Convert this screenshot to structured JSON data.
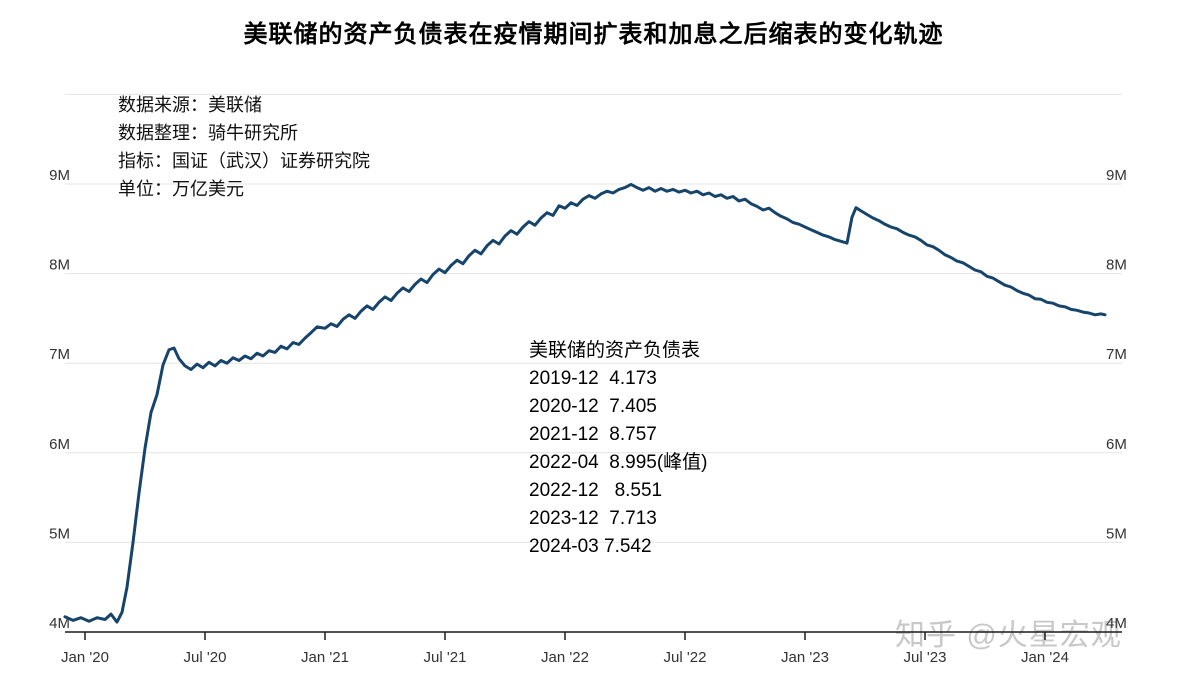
{
  "title": "美联储的资产负债表在疫情期间扩表和加息之后缩表的变化轨迹",
  "meta_lines": [
    "数据来源：美联储",
    "数据整理：骑牛研究所",
    "指标：国证（武汉）证券研究院",
    "单位：万亿美元"
  ],
  "callout": {
    "title": "美联储的资产负债表",
    "rows": [
      "2019-12  4.173",
      "2020-12  7.405",
      "2021-12  8.757",
      "2022-04  8.995(峰值)",
      "2022-12   8.551",
      "2023-12  7.713",
      "2024-03 7.542"
    ]
  },
  "watermark": "知乎 @火星宏观",
  "chart_data": {
    "type": "line",
    "title": "美联储的资产负债表在疫情期间扩表和加息之后缩表的变化轨迹",
    "unit": "万亿美元",
    "source": "美联储",
    "grid": true,
    "legend_position": "none",
    "line_color": "#16446b",
    "grid_color": "#e4e4e4",
    "axis_color": "#1a1a1a",
    "tick_label_color": "#333333",
    "ylim": [
      4,
      10
    ],
    "y_ticks": [
      {
        "value": 4,
        "label": "4M"
      },
      {
        "value": 5,
        "label": "5M"
      },
      {
        "value": 6,
        "label": "6M"
      },
      {
        "value": 7,
        "label": "7M"
      },
      {
        "value": 8,
        "label": "8M"
      },
      {
        "value": 9,
        "label": "9M"
      }
    ],
    "y_gridlines": [
      5,
      6,
      7,
      8,
      9,
      10
    ],
    "x_ticks": [
      {
        "t": 1,
        "label": "Jan '20"
      },
      {
        "t": 7,
        "label": "Jul '20"
      },
      {
        "t": 13,
        "label": "Jan '21"
      },
      {
        "t": 19,
        "label": "Jul '21"
      },
      {
        "t": 25,
        "label": "Jan '22"
      },
      {
        "t": 31,
        "label": "Jul '22"
      },
      {
        "t": 37,
        "label": "Jan '23"
      },
      {
        "t": 43,
        "label": "Jul '23"
      },
      {
        "t": 49,
        "label": "Jan '24"
      }
    ],
    "key_points": [
      {
        "date": "2019-12",
        "value": 4.173
      },
      {
        "date": "2020-12",
        "value": 7.405
      },
      {
        "date": "2021-12",
        "value": 8.757
      },
      {
        "date": "2022-04",
        "value": 8.995,
        "note": "峰值"
      },
      {
        "date": "2022-12",
        "value": 8.551
      },
      {
        "date": "2023-12",
        "value": 7.713
      },
      {
        "date": "2024-03",
        "value": 7.542
      }
    ],
    "series": [
      {
        "name": "美联储的资产负债表",
        "x_unit": "months since 2019-12",
        "points": [
          [
            0,
            4.17
          ],
          [
            0.4,
            4.13
          ],
          [
            0.8,
            4.16
          ],
          [
            1.2,
            4.12
          ],
          [
            1.6,
            4.16
          ],
          [
            2,
            4.14
          ],
          [
            2.3,
            4.2
          ],
          [
            2.6,
            4.11
          ],
          [
            2.85,
            4.22
          ],
          [
            3.1,
            4.5
          ],
          [
            3.4,
            5.0
          ],
          [
            3.7,
            5.55
          ],
          [
            4,
            6.05
          ],
          [
            4.3,
            6.45
          ],
          [
            4.6,
            6.65
          ],
          [
            4.9,
            6.98
          ],
          [
            5.2,
            7.15
          ],
          [
            5.45,
            7.17
          ],
          [
            5.7,
            7.05
          ],
          [
            6,
            6.97
          ],
          [
            6.3,
            6.93
          ],
          [
            6.6,
            6.99
          ],
          [
            6.9,
            6.95
          ],
          [
            7.2,
            7.01
          ],
          [
            7.5,
            6.97
          ],
          [
            7.8,
            7.03
          ],
          [
            8.1,
            7.0
          ],
          [
            8.4,
            7.06
          ],
          [
            8.7,
            7.03
          ],
          [
            9,
            7.08
          ],
          [
            9.3,
            7.05
          ],
          [
            9.6,
            7.11
          ],
          [
            9.9,
            7.08
          ],
          [
            10.2,
            7.14
          ],
          [
            10.5,
            7.12
          ],
          [
            10.8,
            7.19
          ],
          [
            11.1,
            7.16
          ],
          [
            11.4,
            7.23
          ],
          [
            11.7,
            7.21
          ],
          [
            12,
            7.28
          ],
          [
            12.3,
            7.34
          ],
          [
            12.6,
            7.405
          ],
          [
            13,
            7.39
          ],
          [
            13.3,
            7.44
          ],
          [
            13.6,
            7.41
          ],
          [
            13.9,
            7.49
          ],
          [
            14.2,
            7.54
          ],
          [
            14.5,
            7.5
          ],
          [
            14.8,
            7.58
          ],
          [
            15.1,
            7.64
          ],
          [
            15.4,
            7.6
          ],
          [
            15.7,
            7.68
          ],
          [
            16,
            7.74
          ],
          [
            16.3,
            7.7
          ],
          [
            16.6,
            7.78
          ],
          [
            16.9,
            7.84
          ],
          [
            17.2,
            7.8
          ],
          [
            17.5,
            7.88
          ],
          [
            17.8,
            7.94
          ],
          [
            18.1,
            7.9
          ],
          [
            18.4,
            7.99
          ],
          [
            18.7,
            8.05
          ],
          [
            19,
            8.01
          ],
          [
            19.3,
            8.09
          ],
          [
            19.6,
            8.15
          ],
          [
            19.9,
            8.11
          ],
          [
            20.2,
            8.2
          ],
          [
            20.5,
            8.26
          ],
          [
            20.8,
            8.22
          ],
          [
            21.1,
            8.31
          ],
          [
            21.4,
            8.37
          ],
          [
            21.7,
            8.33
          ],
          [
            22,
            8.42
          ],
          [
            22.3,
            8.48
          ],
          [
            22.6,
            8.44
          ],
          [
            22.9,
            8.52
          ],
          [
            23.2,
            8.58
          ],
          [
            23.5,
            8.54
          ],
          [
            23.8,
            8.62
          ],
          [
            24.1,
            8.68
          ],
          [
            24.4,
            8.65
          ],
          [
            24.7,
            8.757
          ],
          [
            25,
            8.73
          ],
          [
            25.3,
            8.79
          ],
          [
            25.6,
            8.76
          ],
          [
            25.9,
            8.83
          ],
          [
            26.2,
            8.87
          ],
          [
            26.5,
            8.84
          ],
          [
            26.8,
            8.89
          ],
          [
            27.1,
            8.92
          ],
          [
            27.4,
            8.9
          ],
          [
            27.7,
            8.94
          ],
          [
            28,
            8.96
          ],
          [
            28.3,
            8.995
          ],
          [
            28.6,
            8.96
          ],
          [
            28.9,
            8.93
          ],
          [
            29.2,
            8.96
          ],
          [
            29.5,
            8.92
          ],
          [
            29.8,
            8.95
          ],
          [
            30.1,
            8.92
          ],
          [
            30.4,
            8.94
          ],
          [
            30.7,
            8.91
          ],
          [
            31,
            8.93
          ],
          [
            31.3,
            8.9
          ],
          [
            31.6,
            8.92
          ],
          [
            31.9,
            8.88
          ],
          [
            32.2,
            8.9
          ],
          [
            32.5,
            8.86
          ],
          [
            32.8,
            8.88
          ],
          [
            33.1,
            8.84
          ],
          [
            33.4,
            8.86
          ],
          [
            33.7,
            8.81
          ],
          [
            34,
            8.83
          ],
          [
            34.3,
            8.78
          ],
          [
            34.6,
            8.75
          ],
          [
            34.9,
            8.71
          ],
          [
            35.2,
            8.73
          ],
          [
            35.5,
            8.68
          ],
          [
            35.8,
            8.64
          ],
          [
            36.1,
            8.61
          ],
          [
            36.4,
            8.57
          ],
          [
            36.7,
            8.551
          ],
          [
            37,
            8.52
          ],
          [
            37.3,
            8.49
          ],
          [
            37.6,
            8.46
          ],
          [
            37.9,
            8.43
          ],
          [
            38.2,
            8.41
          ],
          [
            38.5,
            8.38
          ],
          [
            38.8,
            8.36
          ],
          [
            39.1,
            8.34
          ],
          [
            39.35,
            8.63
          ],
          [
            39.55,
            8.735
          ],
          [
            39.8,
            8.7
          ],
          [
            40.1,
            8.66
          ],
          [
            40.4,
            8.62
          ],
          [
            40.7,
            8.59
          ],
          [
            41,
            8.55
          ],
          [
            41.3,
            8.52
          ],
          [
            41.6,
            8.5
          ],
          [
            41.9,
            8.46
          ],
          [
            42.2,
            8.43
          ],
          [
            42.5,
            8.41
          ],
          [
            42.8,
            8.37
          ],
          [
            43.1,
            8.32
          ],
          [
            43.4,
            8.3
          ],
          [
            43.7,
            8.26
          ],
          [
            44,
            8.21
          ],
          [
            44.3,
            8.18
          ],
          [
            44.6,
            8.14
          ],
          [
            44.9,
            8.12
          ],
          [
            45.2,
            8.08
          ],
          [
            45.5,
            8.04
          ],
          [
            45.8,
            8.02
          ],
          [
            46.1,
            7.97
          ],
          [
            46.4,
            7.95
          ],
          [
            46.7,
            7.91
          ],
          [
            47,
            7.87
          ],
          [
            47.3,
            7.85
          ],
          [
            47.6,
            7.81
          ],
          [
            47.9,
            7.78
          ],
          [
            48.2,
            7.76
          ],
          [
            48.5,
            7.72
          ],
          [
            48.8,
            7.713
          ],
          [
            49.1,
            7.68
          ],
          [
            49.4,
            7.67
          ],
          [
            49.7,
            7.64
          ],
          [
            50,
            7.63
          ],
          [
            50.3,
            7.6
          ],
          [
            50.6,
            7.59
          ],
          [
            50.9,
            7.57
          ],
          [
            51.2,
            7.56
          ],
          [
            51.5,
            7.54
          ],
          [
            51.8,
            7.55
          ],
          [
            52,
            7.54
          ]
        ]
      }
    ]
  }
}
